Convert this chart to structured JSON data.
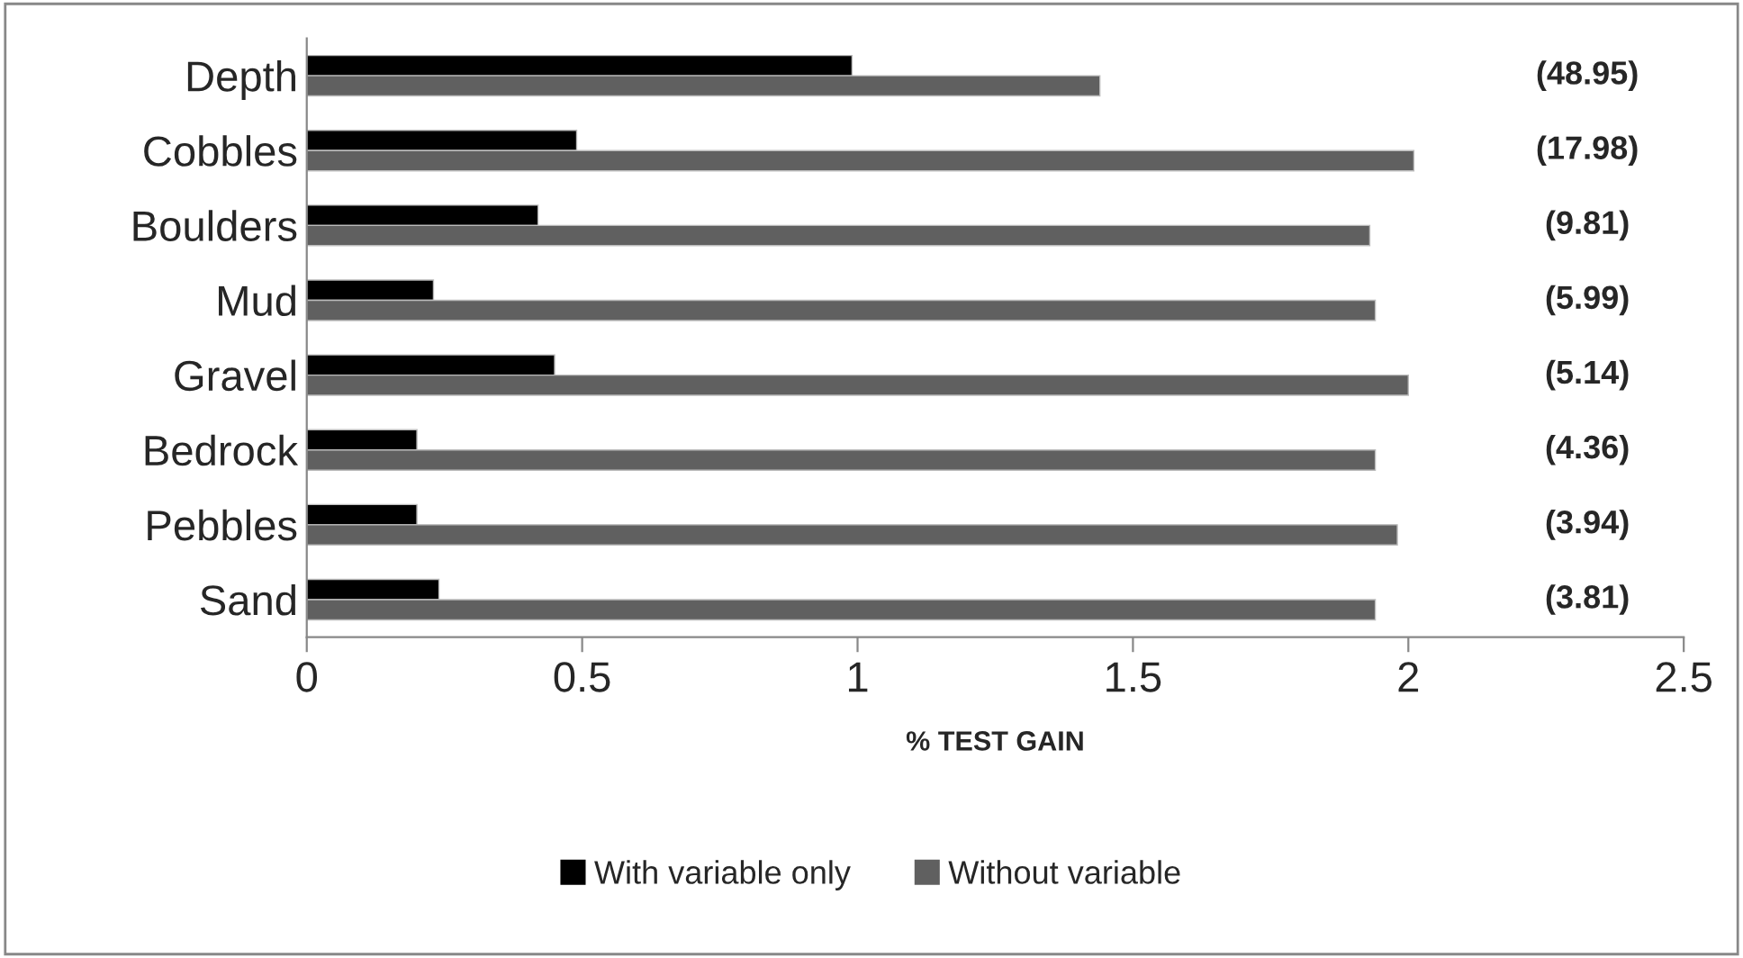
{
  "chart_data": {
    "type": "bar",
    "orientation": "horizontal",
    "xlabel": "% TEST GAIN",
    "categories": [
      "Depth",
      "Cobbles",
      "Boulders",
      "Mud",
      "Gravel",
      "Bedrock",
      "Pebbles",
      "Sand"
    ],
    "series": [
      {
        "name": "With variable only",
        "color": "#000000",
        "values": [
          0.99,
          0.49,
          0.42,
          0.23,
          0.45,
          0.2,
          0.2,
          0.24
        ]
      },
      {
        "name": "Without variable",
        "color": "#606060",
        "values": [
          1.44,
          2.01,
          1.93,
          1.94,
          2.0,
          1.94,
          1.98,
          1.94
        ]
      }
    ],
    "xlim": [
      0,
      2.5
    ],
    "xticks": [
      0,
      0.5,
      1,
      1.5,
      2,
      2.5
    ],
    "grid": false,
    "legend": "bottom",
    "annotations": [
      "(48.95)",
      "(17.98)",
      "(9.81)",
      "(5.99)",
      "(5.14)",
      "(4.36)",
      "(3.94)",
      "(3.81)"
    ]
  }
}
